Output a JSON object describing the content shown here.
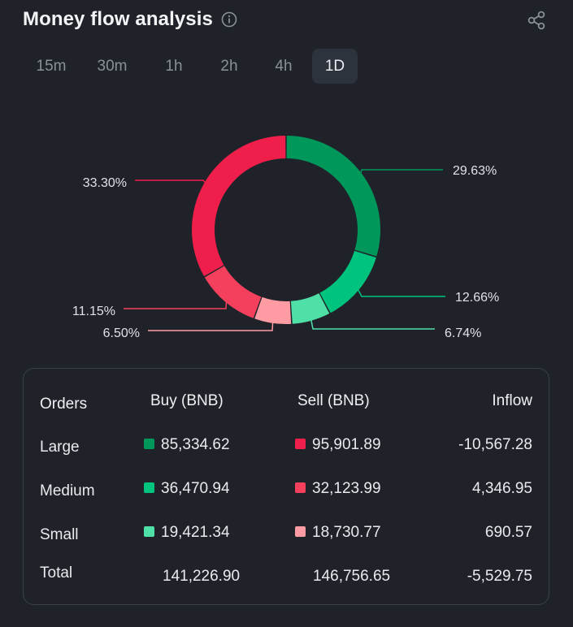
{
  "header": {
    "title": "Money flow analysis"
  },
  "tabs": [
    {
      "label": "15m",
      "active": false
    },
    {
      "label": "30m",
      "active": false
    },
    {
      "label": "1h",
      "active": false
    },
    {
      "label": "2h",
      "active": false
    },
    {
      "label": "4h",
      "active": false
    },
    {
      "label": "1D",
      "active": true
    }
  ],
  "chart_data": {
    "type": "pie",
    "style": "donut",
    "slices": [
      {
        "name": "Large buy",
        "value": 29.63,
        "label": "29.63%",
        "color": "#00975b"
      },
      {
        "name": "Medium buy",
        "value": 12.66,
        "label": "12.66%",
        "color": "#00c47e"
      },
      {
        "name": "Small buy",
        "value": 6.74,
        "label": "6.74%",
        "color": "#4fe0a8"
      },
      {
        "name": "Small sell",
        "value": 6.5,
        "label": "6.50%",
        "color": "#ff9ca3"
      },
      {
        "name": "Medium sell",
        "value": 11.15,
        "label": "11.15%",
        "color": "#f5405d"
      },
      {
        "name": "Large sell",
        "value": 33.3,
        "label": "33.30%",
        "color": "#f01e4a"
      }
    ]
  },
  "table": {
    "headers": {
      "orders": "Orders",
      "buy": "Buy (BNB)",
      "sell": "Sell (BNB)",
      "inflow": "Inflow"
    },
    "rows": [
      {
        "label": "Large",
        "buy": "85,334.62",
        "sell": "95,901.89",
        "inflow": "-10,567.28",
        "buy_color": "#00975b",
        "sell_color": "#f01e4a"
      },
      {
        "label": "Medium",
        "buy": "36,470.94",
        "sell": "32,123.99",
        "inflow": "4,346.95",
        "buy_color": "#00c47e",
        "sell_color": "#f5405d"
      },
      {
        "label": "Small",
        "buy": "19,421.34",
        "sell": "18,730.77",
        "inflow": "690.57",
        "buy_color": "#4fe0a8",
        "sell_color": "#ff9ca3"
      }
    ],
    "total": {
      "label": "Total",
      "buy": "141,226.90",
      "sell": "146,756.65",
      "inflow": "-5,529.75"
    }
  }
}
